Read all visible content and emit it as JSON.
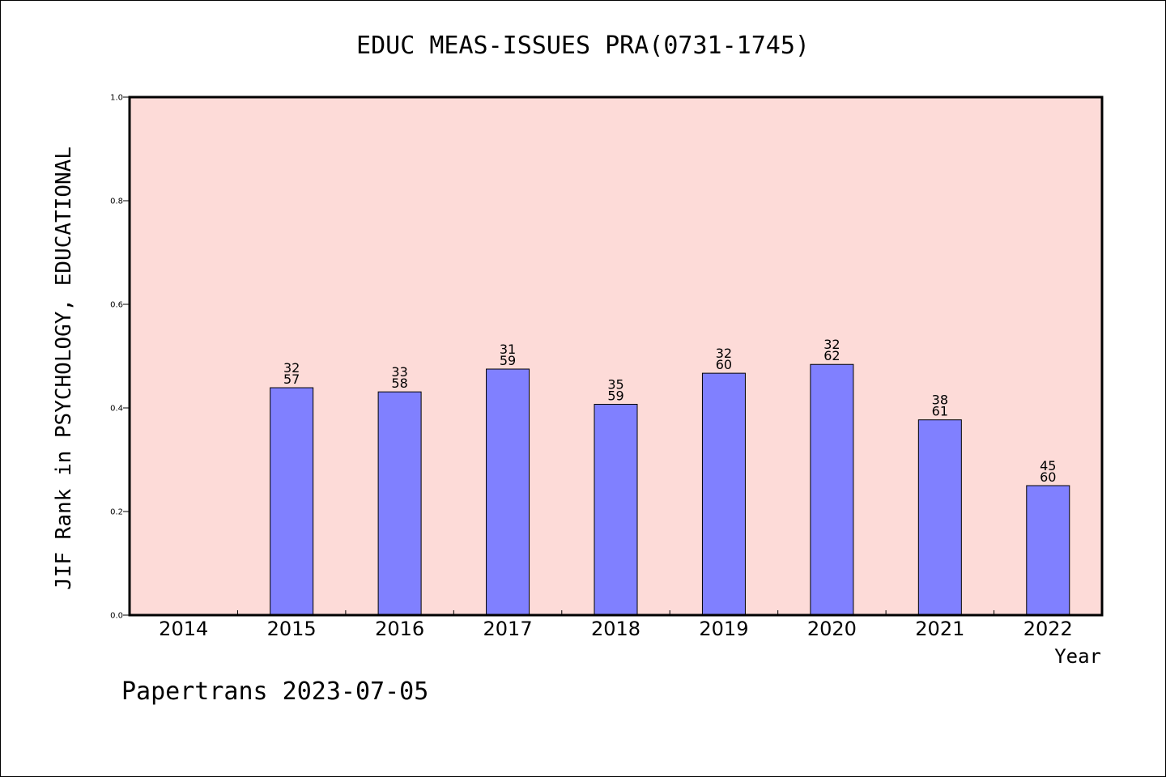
{
  "chart_data": {
    "type": "bar",
    "title": "EDUC MEAS-ISSUES PRA(0731-1745)",
    "xlabel": "Year",
    "ylabel": "JIF Rank in PSYCHOLOGY, EDUCATIONAL",
    "ylim": [
      0,
      1.0
    ],
    "yticks": [
      "0.0",
      "0.2",
      "0.4",
      "0.6",
      "0.8",
      "1.0"
    ],
    "categories": [
      "2014",
      "2015",
      "2016",
      "2017",
      "2018",
      "2019",
      "2020",
      "2021",
      "2022"
    ],
    "ranks": [
      null,
      32,
      33,
      31,
      35,
      32,
      32,
      38,
      45
    ],
    "totals": [
      null,
      57,
      58,
      59,
      59,
      60,
      62,
      61,
      60
    ],
    "values": [
      null,
      0.439,
      0.431,
      0.475,
      0.407,
      0.467,
      0.484,
      0.377,
      0.25
    ],
    "plot_background": "#fddbd8",
    "bar_color": "#8080ff",
    "grid": false
  },
  "footer": "Papertrans 2023-07-05"
}
